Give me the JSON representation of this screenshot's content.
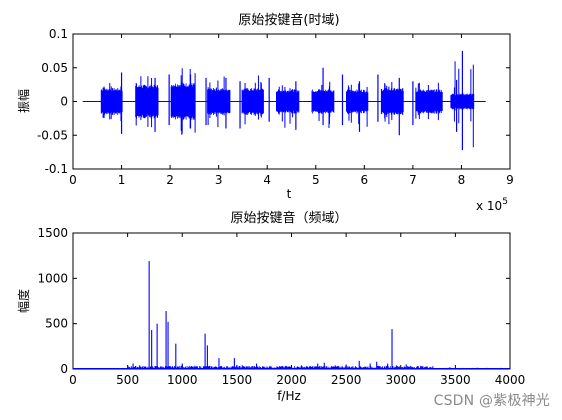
{
  "watermark": "CSDN @紫极神光",
  "chart_data": [
    {
      "type": "line",
      "title": "原始按键音(时域)",
      "xlabel": "t",
      "ylabel": "振幅",
      "x_exponent_label": "x 10",
      "x_exponent": "5",
      "xlim": [
        0,
        9
      ],
      "ylim": [
        -0.1,
        0.1
      ],
      "x_ticks": [
        0,
        1,
        2,
        3,
        4,
        5,
        6,
        7,
        8,
        9
      ],
      "y_ticks": [
        -0.1,
        -0.05,
        0,
        0.05,
        0.1
      ],
      "x_tick_labels": [
        "0",
        "1",
        "2",
        "3",
        "4",
        "5",
        "6",
        "7",
        "8",
        "9"
      ],
      "y_tick_labels": [
        "-0.1",
        "-0.05",
        "0",
        "0.05",
        "0.1"
      ],
      "grid": false,
      "color": "#0000ff",
      "segments": [
        {
          "x_start": 0.58,
          "x_end": 1.02,
          "amplitude": 0.02,
          "spike_pos": 0.03,
          "spike_neg": -0.03
        },
        {
          "x_start": 1.29,
          "x_end": 1.76,
          "amplitude": 0.025,
          "spike_pos": 0.04,
          "spike_neg": -0.04
        },
        {
          "x_start": 2.02,
          "x_end": 2.52,
          "amplitude": 0.028,
          "spike_pos": 0.05,
          "spike_neg": -0.05
        },
        {
          "x_start": 2.77,
          "x_end": 3.24,
          "amplitude": 0.02,
          "spike_pos": 0.04,
          "spike_neg": -0.04
        },
        {
          "x_start": 3.48,
          "x_end": 3.93,
          "amplitude": 0.02,
          "spike_pos": 0.04,
          "spike_neg": -0.035
        },
        {
          "x_start": 4.19,
          "x_end": 4.66,
          "amplitude": 0.018,
          "spike_pos": 0.03,
          "spike_neg": -0.04
        },
        {
          "x_start": 4.92,
          "x_end": 5.38,
          "amplitude": 0.018,
          "spike_pos": 0.03,
          "spike_neg": -0.04
        },
        {
          "x_start": 5.63,
          "x_end": 6.08,
          "amplitude": 0.018,
          "spike_pos": 0.03,
          "spike_neg": -0.04
        },
        {
          "x_start": 6.35,
          "x_end": 6.81,
          "amplitude": 0.02,
          "spike_pos": 0.04,
          "spike_neg": -0.04
        },
        {
          "x_start": 7.06,
          "x_end": 7.61,
          "amplitude": 0.018,
          "spike_pos": 0.03,
          "spike_neg": -0.03
        },
        {
          "x_start": 7.78,
          "x_end": 8.26,
          "amplitude": 0.012,
          "spike_pos": 0.075,
          "spike_neg": -0.072
        }
      ],
      "spikes": [
        {
          "x": 1.0,
          "y_min": -0.048,
          "y_max": 0.043
        },
        {
          "x": 1.69,
          "y_min": -0.045,
          "y_max": 0.035
        },
        {
          "x": 1.98,
          "y_min": -0.035,
          "y_max": 0.04
        },
        {
          "x": 2.42,
          "y_min": -0.04,
          "y_max": 0.04
        },
        {
          "x": 2.74,
          "y_min": -0.035,
          "y_max": 0.035
        },
        {
          "x": 3.15,
          "y_min": -0.04,
          "y_max": 0.035
        },
        {
          "x": 3.44,
          "y_min": -0.04,
          "y_max": 0.03
        },
        {
          "x": 4.04,
          "y_min": -0.03,
          "y_max": 0.035
        },
        {
          "x": 4.59,
          "y_min": -0.042,
          "y_max": 0.03
        },
        {
          "x": 5.15,
          "y_min": -0.035,
          "y_max": 0.05
        },
        {
          "x": 5.55,
          "y_min": -0.035,
          "y_max": 0.04
        },
        {
          "x": 5.9,
          "y_min": -0.045,
          "y_max": 0.03
        },
        {
          "x": 6.28,
          "y_min": -0.03,
          "y_max": 0.04
        },
        {
          "x": 6.72,
          "y_min": -0.05,
          "y_max": 0.035
        },
        {
          "x": 7.0,
          "y_min": -0.035,
          "y_max": 0.03
        },
        {
          "x": 7.9,
          "y_min": -0.045,
          "y_max": 0.032
        },
        {
          "x": 8.02,
          "y_min": -0.072,
          "y_max": 0.075
        }
      ]
    },
    {
      "type": "line",
      "title": "原始按键音（频域）",
      "xlabel": "f/Hz",
      "ylabel": "幅度",
      "xlim": [
        0,
        4000
      ],
      "ylim": [
        0,
        1500
      ],
      "x_ticks": [
        0,
        500,
        1000,
        1500,
        2000,
        2500,
        3000,
        3500,
        4000
      ],
      "y_ticks": [
        0,
        500,
        1000,
        1500
      ],
      "x_tick_labels": [
        "0",
        "500",
        "1000",
        "1500",
        "2000",
        "2500",
        "3000",
        "3500",
        "4000"
      ],
      "y_tick_labels": [
        "0",
        "500",
        "1000",
        "1500"
      ],
      "grid": false,
      "color": "#0000ff",
      "peaks": [
        {
          "x": 550,
          "y": 60
        },
        {
          "x": 610,
          "y": 40
        },
        {
          "x": 697,
          "y": 1190
        },
        {
          "x": 720,
          "y": 430
        },
        {
          "x": 770,
          "y": 500
        },
        {
          "x": 852,
          "y": 640
        },
        {
          "x": 870,
          "y": 520
        },
        {
          "x": 941,
          "y": 280
        },
        {
          "x": 1000,
          "y": 60
        },
        {
          "x": 1209,
          "y": 390
        },
        {
          "x": 1230,
          "y": 260
        },
        {
          "x": 1336,
          "y": 120
        },
        {
          "x": 1477,
          "y": 120
        },
        {
          "x": 1550,
          "y": 40
        },
        {
          "x": 1680,
          "y": 60
        },
        {
          "x": 1800,
          "y": 30
        },
        {
          "x": 1950,
          "y": 25
        },
        {
          "x": 2090,
          "y": 40
        },
        {
          "x": 2240,
          "y": 60
        },
        {
          "x": 2300,
          "y": 70
        },
        {
          "x": 2400,
          "y": 40
        },
        {
          "x": 2500,
          "y": 50
        },
        {
          "x": 2620,
          "y": 90
        },
        {
          "x": 2720,
          "y": 60
        },
        {
          "x": 2780,
          "y": 80
        },
        {
          "x": 2880,
          "y": 60
        },
        {
          "x": 2920,
          "y": 440
        },
        {
          "x": 2960,
          "y": 40
        },
        {
          "x": 3050,
          "y": 50
        },
        {
          "x": 3200,
          "y": 25
        },
        {
          "x": 3450,
          "y": 20
        },
        {
          "x": 3700,
          "y": 15
        }
      ]
    }
  ]
}
